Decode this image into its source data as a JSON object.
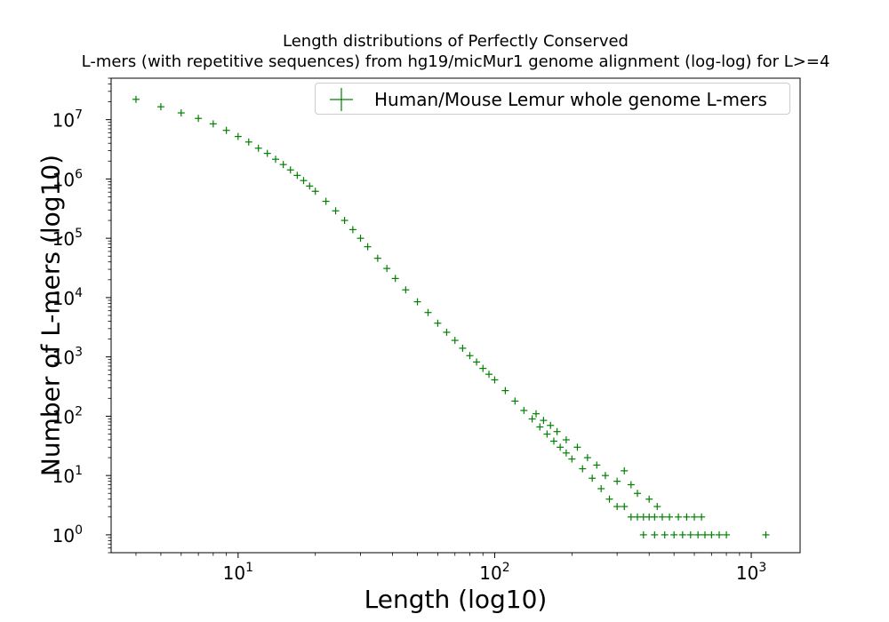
{
  "chart_data": {
    "type": "scatter",
    "title": [
      "Length distributions of Perfectly Conserved",
      "L-mers (with repetitive sequences) from hg19/micMur1 genome alignment (log-log) for L>=4"
    ],
    "xlabel": "Length (log10)",
    "ylabel": "Number of L-mers (log10)",
    "xscale": "log",
    "yscale": "log",
    "xlim": [
      3.2,
      1550
    ],
    "ylim": [
      0.5,
      50000000
    ],
    "grid": false,
    "legend_position": "top-right",
    "x_ticks": [
      {
        "value": 10,
        "base": "10",
        "exp": "1"
      },
      {
        "value": 100,
        "base": "10",
        "exp": "2"
      },
      {
        "value": 1000,
        "base": "10",
        "exp": "3"
      }
    ],
    "y_ticks": [
      {
        "value": 1,
        "base": "10",
        "exp": "0"
      },
      {
        "value": 10,
        "base": "10",
        "exp": "1"
      },
      {
        "value": 100,
        "base": "10",
        "exp": "2"
      },
      {
        "value": 1000,
        "base": "10",
        "exp": "3"
      },
      {
        "value": 10000,
        "base": "10",
        "exp": "4"
      },
      {
        "value": 100000,
        "base": "10",
        "exp": "5"
      },
      {
        "value": 1000000,
        "base": "10",
        "exp": "6"
      },
      {
        "value": 10000000,
        "base": "10",
        "exp": "7"
      }
    ],
    "series": [
      {
        "name": "Human/Mouse Lemur whole genome L-mers",
        "color": "#008000",
        "marker": "plus",
        "points": [
          [
            4,
            22000000
          ],
          [
            5,
            16500000
          ],
          [
            6,
            13000000
          ],
          [
            7,
            10500000
          ],
          [
            8,
            8500000
          ],
          [
            9,
            6600000
          ],
          [
            10,
            5200000
          ],
          [
            11,
            4200000
          ],
          [
            12,
            3300000
          ],
          [
            13,
            2700000
          ],
          [
            14,
            2150000
          ],
          [
            15,
            1750000
          ],
          [
            16,
            1420000
          ],
          [
            17,
            1150000
          ],
          [
            18,
            940000
          ],
          [
            19,
            760000
          ],
          [
            20,
            620000
          ],
          [
            22,
            420000
          ],
          [
            24,
            290000
          ],
          [
            26,
            200000
          ],
          [
            28,
            140000
          ],
          [
            30,
            100000
          ],
          [
            32,
            72000
          ],
          [
            35,
            46000
          ],
          [
            38,
            31000
          ],
          [
            41,
            21000
          ],
          [
            45,
            13500
          ],
          [
            50,
            8500
          ],
          [
            55,
            5600
          ],
          [
            60,
            3700
          ],
          [
            65,
            2600
          ],
          [
            70,
            1900
          ],
          [
            75,
            1400
          ],
          [
            80,
            1050
          ],
          [
            85,
            820
          ],
          [
            90,
            640
          ],
          [
            95,
            510
          ],
          [
            100,
            410
          ],
          [
            110,
            270
          ],
          [
            120,
            180
          ],
          [
            130,
            125
          ],
          [
            140,
            90
          ],
          [
            150,
            66
          ],
          [
            160,
            50
          ],
          [
            170,
            38
          ],
          [
            180,
            30
          ],
          [
            190,
            24
          ],
          [
            200,
            19
          ],
          [
            220,
            13
          ],
          [
            240,
            9
          ],
          [
            260,
            6
          ],
          [
            280,
            4
          ],
          [
            300,
            3
          ],
          [
            320,
            3
          ],
          [
            340,
            2
          ],
          [
            360,
            2
          ],
          [
            380,
            2
          ],
          [
            400,
            2
          ],
          [
            420,
            2
          ],
          [
            450,
            2
          ],
          [
            480,
            2
          ],
          [
            520,
            2
          ],
          [
            560,
            2
          ],
          [
            600,
            2
          ],
          [
            640,
            2
          ],
          [
            380,
            1
          ],
          [
            420,
            1
          ],
          [
            460,
            1
          ],
          [
            500,
            1
          ],
          [
            540,
            1
          ],
          [
            580,
            1
          ],
          [
            620,
            1
          ],
          [
            660,
            1
          ],
          [
            700,
            1
          ],
          [
            750,
            1
          ],
          [
            800,
            1
          ],
          [
            1140,
            1
          ],
          [
            270,
            10
          ],
          [
            300,
            8
          ],
          [
            320,
            12
          ],
          [
            340,
            7
          ],
          [
            360,
            5
          ],
          [
            400,
            4
          ],
          [
            430,
            3
          ],
          [
            250,
            15
          ],
          [
            230,
            20
          ],
          [
            210,
            30
          ],
          [
            190,
            40
          ],
          [
            175,
            55
          ],
          [
            165,
            70
          ],
          [
            155,
            85
          ],
          [
            145,
            110
          ]
        ]
      }
    ]
  }
}
